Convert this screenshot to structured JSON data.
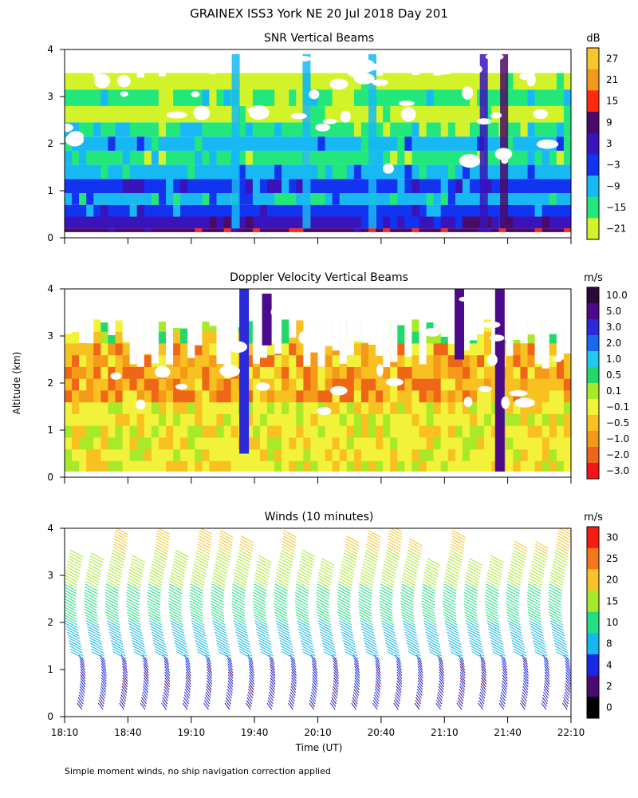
{
  "chart_data": {
    "type": "heatmap",
    "title": "GRAINEX ISS3 York NE  20 Jul 2018 Day 201",
    "ylabel": "Altitude (km)",
    "xlabel": "Time (UT)",
    "ylim": [
      0,
      4
    ],
    "y_ticks": [
      "0",
      "1",
      "2",
      "3",
      "4"
    ],
    "x_ticks": [
      "18:10",
      "18:40",
      "19:10",
      "19:40",
      "20:10",
      "20:40",
      "21:10",
      "21:40",
      "22:10"
    ],
    "footnote": "Simple moment winds, no ship navigation correction applied",
    "panels": [
      {
        "title": "SNR Vertical Beams",
        "unit": "dB",
        "colorbar": {
          "labels": [
            "27",
            "21",
            "15",
            "9",
            "3",
            "−3",
            "−9",
            "−15",
            "−21"
          ],
          "colors": [
            "#f7c52c",
            "#f39a1d",
            "#ff2a10",
            "#4a0a66",
            "#3a13bb",
            "#1233f0",
            "#18b8f5",
            "#22e87b",
            "#d2f329"
          ]
        }
      },
      {
        "title": "Doppler Velocity Vertical Beams",
        "unit": "m/s",
        "colorbar": {
          "labels": [
            "10.0",
            "5.0",
            "3.0",
            "2.0",
            "1.0",
            "0.5",
            "0.1",
            "−0.1",
            "−0.5",
            "−1.0",
            "−2.0",
            "−3.0"
          ],
          "colors": [
            "#2a0a3a",
            "#4a0a8a",
            "#2a2ad8",
            "#1a6af0",
            "#22c8f0",
            "#22d86a",
            "#a8ea2a",
            "#f2f23a",
            "#f8c020",
            "#f49a18",
            "#f06618",
            "#f5141a"
          ]
        }
      },
      {
        "title": "Winds (10 minutes)",
        "unit": "m/s",
        "colorbar": {
          "labels": [
            "30",
            "25",
            "20",
            "15",
            "10",
            "8",
            "4",
            "2",
            "0"
          ],
          "colors": [
            "#f51c10",
            "#f3791c",
            "#f8c32a",
            "#a6e82a",
            "#22e082",
            "#18b6ee",
            "#1a28e6",
            "#4a0a70",
            "#000000"
          ]
        }
      }
    ]
  }
}
